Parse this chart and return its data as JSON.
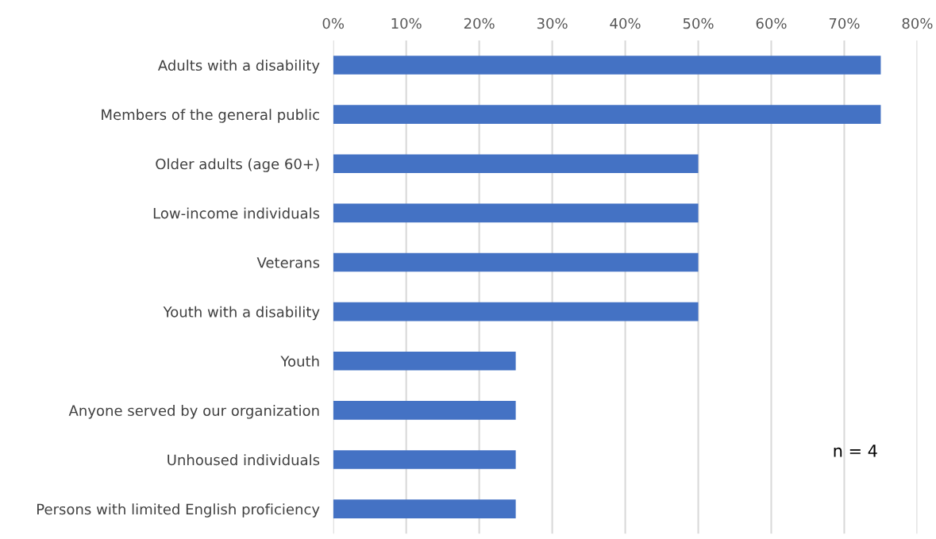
{
  "chart_data": {
    "type": "bar",
    "orientation": "horizontal",
    "categories": [
      "Adults with a disability",
      "Members of the general public",
      "Older adults (age 60+)",
      "Low-income individuals",
      "Veterans",
      "Youth with a disability",
      "Youth",
      "Anyone served by our organization",
      "Unhoused individuals",
      "Persons with limited English proficiency"
    ],
    "values": [
      75,
      75,
      50,
      50,
      50,
      50,
      25,
      25,
      25,
      25
    ],
    "color": "#4472c4",
    "xlim": [
      0,
      80
    ],
    "xticks": [
      {
        "value": 0,
        "label": "0%"
      },
      {
        "value": 10,
        "label": "10%"
      },
      {
        "value": 20,
        "label": "20%"
      },
      {
        "value": 30,
        "label": "30%"
      },
      {
        "value": 40,
        "label": "40%"
      },
      {
        "value": 50,
        "label": "50%"
      },
      {
        "value": 60,
        "label": "60%"
      },
      {
        "value": 70,
        "label": "70%"
      },
      {
        "value": 80,
        "label": "80%"
      }
    ],
    "grid": "x",
    "annotations": [
      "n = 4"
    ]
  }
}
